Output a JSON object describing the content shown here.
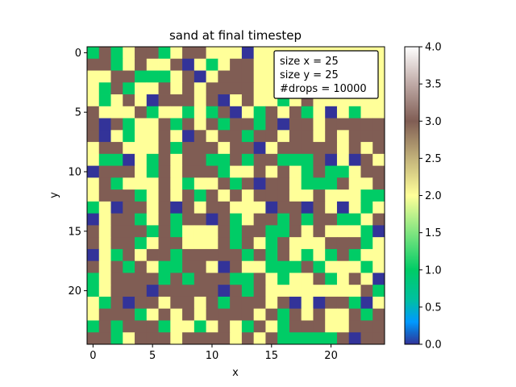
{
  "chart_data": {
    "type": "heatmap",
    "title": "sand at final timestep",
    "xlabel": "x",
    "ylabel": "y",
    "x_ticks": [
      0,
      5,
      10,
      15,
      20
    ],
    "y_ticks": [
      0,
      5,
      10,
      15,
      20
    ],
    "xlim": [
      -0.5,
      24.5
    ],
    "ylim": [
      24.5,
      -0.5
    ],
    "colormap": "terrain",
    "colorbar": {
      "range": [
        0.0,
        4.0
      ],
      "ticks": [
        "0.0",
        "0.5",
        "1.0",
        "1.5",
        "2.0",
        "2.5",
        "3.0",
        "3.5",
        "4.0"
      ]
    },
    "annotation": [
      "size x = 25",
      "size y = 25",
      "#drops = 10000"
    ],
    "grid": [
      [
        1,
        3,
        1,
        2,
        3,
        3,
        1,
        2,
        3,
        3,
        2,
        2,
        2,
        0,
        2,
        2,
        2,
        2,
        2,
        2,
        2,
        2,
        2,
        2,
        2
      ],
      [
        3,
        3,
        1,
        2,
        3,
        2,
        2,
        3,
        0,
        2,
        1,
        2,
        3,
        3,
        2,
        2,
        1,
        2,
        2,
        2,
        2,
        2,
        2,
        2,
        2
      ],
      [
        2,
        2,
        3,
        3,
        1,
        1,
        1,
        2,
        3,
        0,
        2,
        3,
        3,
        3,
        2,
        2,
        3,
        2,
        2,
        2,
        3,
        2,
        2,
        2,
        2
      ],
      [
        2,
        1,
        3,
        1,
        2,
        2,
        3,
        2,
        3,
        2,
        3,
        3,
        3,
        3,
        2,
        2,
        2,
        2,
        2,
        2,
        2,
        2,
        2,
        2,
        2
      ],
      [
        2,
        1,
        2,
        3,
        2,
        0,
        3,
        3,
        3,
        2,
        3,
        0,
        2,
        3,
        2,
        2,
        1,
        2,
        3,
        2,
        2,
        2,
        2,
        2,
        2
      ],
      [
        3,
        2,
        2,
        2,
        3,
        1,
        2,
        2,
        1,
        2,
        1,
        3,
        0,
        2,
        1,
        3,
        2,
        3,
        1,
        2,
        0,
        2,
        1,
        2,
        2
      ],
      [
        3,
        0,
        3,
        1,
        2,
        2,
        3,
        1,
        3,
        2,
        3,
        1,
        3,
        3,
        1,
        3,
        0,
        3,
        3,
        2,
        3,
        3,
        3,
        3,
        3
      ],
      [
        3,
        0,
        2,
        1,
        2,
        2,
        3,
        2,
        0,
        3,
        2,
        3,
        3,
        1,
        3,
        3,
        2,
        3,
        3,
        2,
        3,
        2,
        3,
        3,
        3
      ],
      [
        2,
        3,
        3,
        2,
        2,
        2,
        3,
        1,
        3,
        3,
        3,
        2,
        3,
        3,
        0,
        2,
        3,
        3,
        3,
        3,
        3,
        2,
        3,
        2,
        3
      ],
      [
        2,
        1,
        1,
        0,
        2,
        1,
        3,
        2,
        3,
        3,
        1,
        1,
        3,
        1,
        3,
        3,
        1,
        1,
        1,
        3,
        0,
        2,
        0,
        3,
        2
      ],
      [
        0,
        3,
        3,
        3,
        2,
        1,
        3,
        2,
        3,
        3,
        3,
        1,
        2,
        2,
        3,
        2,
        3,
        2,
        1,
        3,
        1,
        1,
        2,
        3,
        3
      ],
      [
        2,
        3,
        1,
        2,
        2,
        2,
        3,
        2,
        1,
        2,
        2,
        3,
        1,
        3,
        0,
        3,
        3,
        2,
        1,
        1,
        1,
        3,
        2,
        2,
        3
      ],
      [
        2,
        3,
        3,
        3,
        1,
        2,
        3,
        2,
        3,
        1,
        3,
        2,
        3,
        2,
        3,
        3,
        3,
        2,
        2,
        3,
        2,
        2,
        2,
        1,
        1
      ],
      [
        1,
        2,
        0,
        3,
        3,
        2,
        3,
        0,
        3,
        2,
        3,
        3,
        2,
        2,
        2,
        0,
        3,
        3,
        0,
        3,
        2,
        0,
        2,
        1,
        2
      ],
      [
        0,
        2,
        3,
        3,
        1,
        2,
        3,
        1,
        3,
        3,
        0,
        3,
        1,
        2,
        3,
        3,
        1,
        3,
        1,
        3,
        3,
        1,
        1,
        2,
        3
      ],
      [
        3,
        2,
        3,
        3,
        3,
        1,
        3,
        1,
        2,
        2,
        2,
        3,
        1,
        3,
        3,
        1,
        1,
        3,
        2,
        3,
        2,
        2,
        2,
        1,
        0
      ],
      [
        3,
        2,
        3,
        3,
        1,
        2,
        3,
        3,
        2,
        2,
        2,
        3,
        1,
        3,
        2,
        1,
        3,
        2,
        2,
        2,
        3,
        3,
        3,
        1,
        2
      ],
      [
        0,
        2,
        1,
        3,
        2,
        3,
        3,
        1,
        3,
        3,
        3,
        3,
        3,
        1,
        3,
        1,
        3,
        2,
        1,
        2,
        1,
        3,
        1,
        2,
        2
      ],
      [
        3,
        2,
        3,
        1,
        3,
        2,
        1,
        1,
        3,
        3,
        2,
        0,
        3,
        2,
        2,
        1,
        1,
        1,
        3,
        1,
        2,
        2,
        2,
        1,
        2
      ],
      [
        1,
        2,
        3,
        3,
        3,
        3,
        1,
        3,
        1,
        3,
        3,
        3,
        1,
        1,
        3,
        2,
        1,
        2,
        2,
        3,
        1,
        2,
        3,
        2,
        0
      ],
      [
        1,
        2,
        3,
        3,
        3,
        0,
        3,
        3,
        3,
        3,
        3,
        0,
        3,
        1,
        3,
        2,
        2,
        2,
        2,
        2,
        2,
        2,
        2,
        3,
        1
      ],
      [
        2,
        1,
        3,
        0,
        3,
        3,
        2,
        3,
        3,
        2,
        3,
        1,
        3,
        3,
        3,
        2,
        3,
        0,
        2,
        0,
        3,
        3,
        1,
        0,
        2
      ],
      [
        2,
        3,
        3,
        3,
        1,
        2,
        3,
        2,
        3,
        2,
        3,
        3,
        3,
        3,
        2,
        3,
        1,
        3,
        2,
        3,
        2,
        2,
        3,
        1,
        3
      ],
      [
        1,
        3,
        1,
        3,
        3,
        3,
        1,
        2,
        2,
        1,
        2,
        3,
        2,
        1,
        3,
        2,
        1,
        3,
        3,
        3,
        2,
        2,
        3,
        3,
        3
      ],
      [
        3,
        3,
        1,
        2,
        3,
        3,
        3,
        2,
        3,
        3,
        3,
        3,
        2,
        3,
        2,
        3,
        1,
        1,
        1,
        1,
        1,
        3,
        0,
        3,
        3
      ]
    ]
  }
}
